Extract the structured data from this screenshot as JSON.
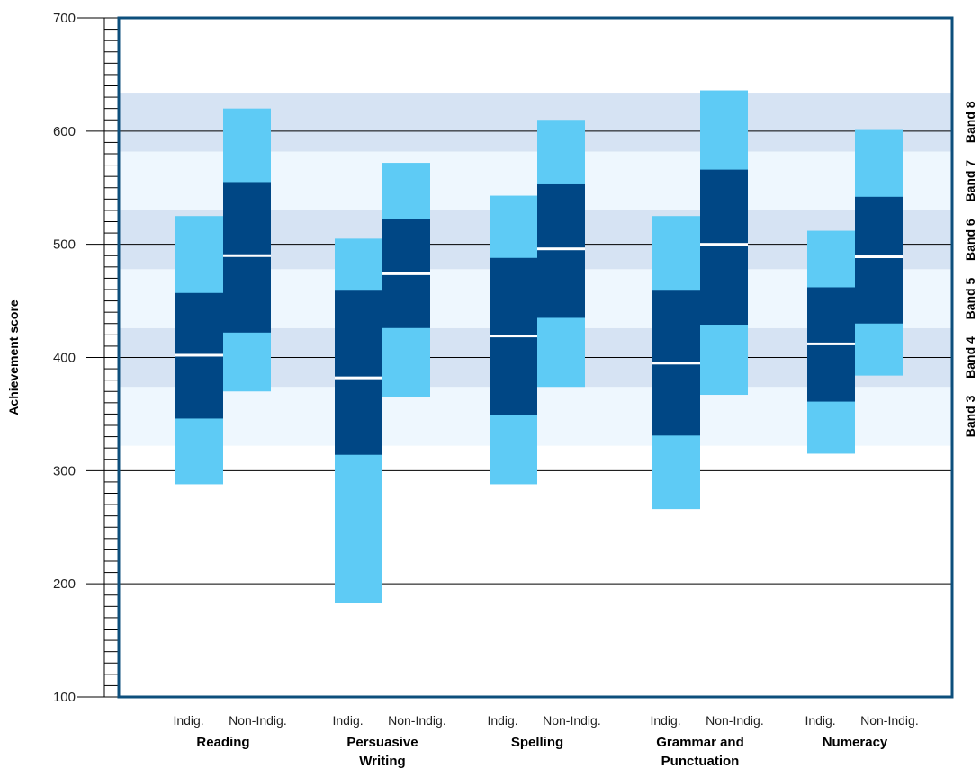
{
  "chart_data": {
    "type": "box-range",
    "ylabel": "Achievement score",
    "ylim": [
      100,
      700
    ],
    "yticks": [
      100,
      200,
      300,
      400,
      500,
      600,
      700
    ],
    "gridlines": [
      200,
      300,
      400,
      500,
      600
    ],
    "groups": [
      "Indig.",
      "Non-Indig."
    ],
    "categories": [
      {
        "name": "Reading",
        "name_lines": [
          "Reading"
        ],
        "bars": [
          {
            "group": "Indig.",
            "p5": 288,
            "p20": 346,
            "mean": 402,
            "p80": 457,
            "p95": 525
          },
          {
            "group": "Non-Indig.",
            "p5": 370,
            "p20": 422,
            "mean": 490,
            "p80": 555,
            "p95": 620
          }
        ]
      },
      {
        "name": "Persuasive Writing",
        "name_lines": [
          "Persuasive",
          "Writing"
        ],
        "bars": [
          {
            "group": "Indig.",
            "p5": 183,
            "p20": 314,
            "mean": 382,
            "p80": 459,
            "p95": 505
          },
          {
            "group": "Non-Indig.",
            "p5": 365,
            "p20": 426,
            "mean": 474,
            "p80": 522,
            "p95": 572
          }
        ]
      },
      {
        "name": "Spelling",
        "name_lines": [
          "Spelling"
        ],
        "bars": [
          {
            "group": "Indig.",
            "p5": 288,
            "p20": 349,
            "mean": 419,
            "p80": 488,
            "p95": 543
          },
          {
            "group": "Non-Indig.",
            "p5": 374,
            "p20": 435,
            "mean": 496,
            "p80": 553,
            "p95": 610
          }
        ]
      },
      {
        "name": "Grammar and Punctuation",
        "name_lines": [
          "Grammar and",
          "Punctuation"
        ],
        "bars": [
          {
            "group": "Indig.",
            "p5": 266,
            "p20": 331,
            "mean": 395,
            "p80": 459,
            "p95": 525
          },
          {
            "group": "Non-Indig.",
            "p5": 367,
            "p20": 429,
            "mean": 500,
            "p80": 566,
            "p95": 636
          }
        ]
      },
      {
        "name": "Numeracy",
        "name_lines": [
          "Numeracy"
        ],
        "bars": [
          {
            "group": "Indig.",
            "p5": 315,
            "p20": 361,
            "mean": 412,
            "p80": 462,
            "p95": 512
          },
          {
            "group": "Non-Indig.",
            "p5": 384,
            "p20": 430,
            "mean": 489,
            "p80": 542,
            "p95": 601
          }
        ]
      }
    ],
    "bands": [
      {
        "label": "Band 3",
        "min": 322,
        "max": 374,
        "color": "#eef7fe"
      },
      {
        "label": "Band 4",
        "min": 374,
        "max": 426,
        "color": "#d6e3f3"
      },
      {
        "label": "Band 5",
        "min": 426,
        "max": 478,
        "color": "#eef7fe"
      },
      {
        "label": "Band 6",
        "min": 478,
        "max": 530,
        "color": "#d6e3f3"
      },
      {
        "label": "Band 7",
        "min": 530,
        "max": 582,
        "color": "#eef7fe"
      },
      {
        "label": "Band 8",
        "min": 582,
        "max": 634,
        "color": "#d6e3f3"
      }
    ],
    "colors": {
      "outer_range": "#5ecbf5",
      "inner_range": "#004785",
      "mean_line": "#ffffff",
      "frame": "#0d4f7c",
      "grid": "#000000"
    }
  }
}
